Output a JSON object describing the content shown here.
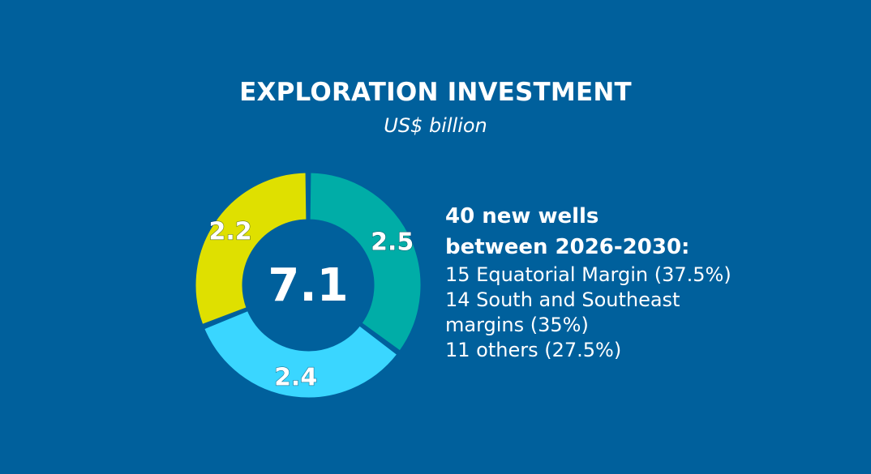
{
  "chart_data": {
    "type": "pie",
    "variant": "donut",
    "title": "EXPLORATION INVESTMENT",
    "subtitle": "US$ billion",
    "total_label": "7.1",
    "slices": [
      {
        "label": "2.5",
        "value": 2.5,
        "color": "#00ada7"
      },
      {
        "label": "2.4",
        "value": 2.4,
        "color": "#3ad6ff"
      },
      {
        "label": "2.2",
        "value": 2.2,
        "color": "#dfe000"
      }
    ]
  },
  "info": {
    "heading_line1": "40 new wells",
    "heading_line2": "between 2026-2030:",
    "items": [
      "15 Equatorial Margin (37.5%)",
      "14 South and Southeast",
      "margins (35%)",
      "11 others (27.5%)"
    ]
  },
  "colors": {
    "background": "#00609c",
    "text": "#ffffff"
  }
}
